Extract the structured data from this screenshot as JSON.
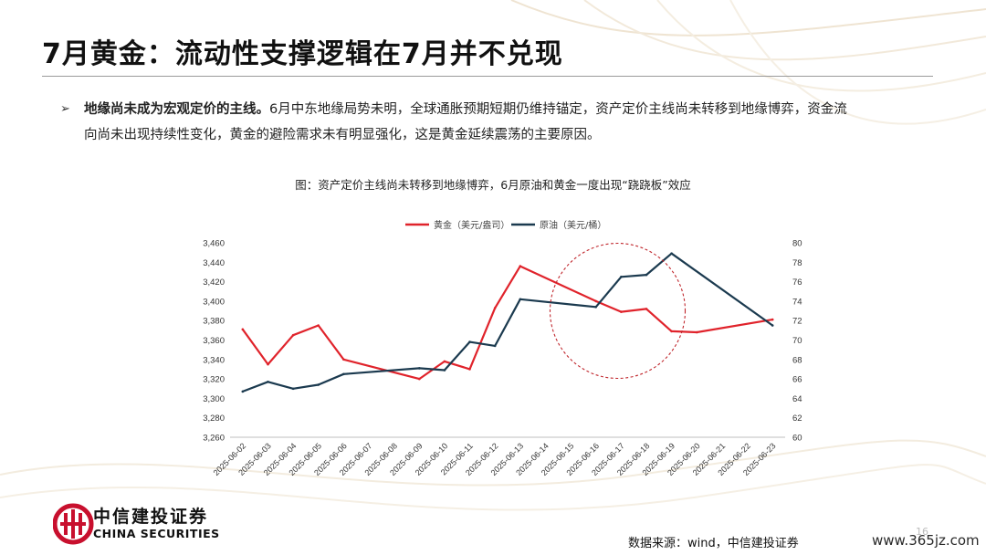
{
  "page": {
    "title": "7月黄金：流动性支撑逻辑在7月并不兑现",
    "bullet_lead": "地缘尚未成为宏观定价的主线。",
    "bullet_body_line1": "6月中东地缘局势未明，全球通胀预期短期仍维持锚定，资产定价主线尚未转移到地缘博弈，资金流",
    "bullet_body_line2": "向尚未出现持续性变化，黄金的避险需求未有明显强化，这是黄金延续震荡的主要原因。",
    "chart_caption": "图：资产定价主线尚未转移到地缘博弈，6月原油和黄金一度出现“跷跷板”效应",
    "logo_cn": "中信建投证券",
    "logo_en": "CHINA SECURITIES",
    "source": "数据来源：wind，中信建投证券",
    "watermark": "www.365jz.com",
    "page_number": "16"
  },
  "colors": {
    "gold_series": "#e0232b",
    "oil_series": "#1b3a4f",
    "circle": "#c0272d",
    "logo_red": "#c8102e"
  },
  "chart_data": {
    "type": "line",
    "categories": [
      "2025-06-02",
      "2025-06-03",
      "2025-06-04",
      "2025-06-05",
      "2025-06-06",
      "2025-06-07",
      "2025-06-08",
      "2025-06-09",
      "2025-06-10",
      "2025-06-11",
      "2025-06-12",
      "2025-06-13",
      "2025-06-14",
      "2025-06-15",
      "2025-06-16",
      "2025-06-17",
      "2025-06-18",
      "2025-06-19",
      "2025-06-20",
      "2025-06-21",
      "2025-06-22",
      "2025-06-23"
    ],
    "series": [
      {
        "name": "黄金（美元/盎司）",
        "axis": "left",
        "values": [
          3371,
          3335,
          3365,
          3375,
          3340,
          null,
          null,
          3320,
          3338,
          3330,
          3393,
          3436,
          null,
          null,
          3400,
          3389,
          3392,
          3369,
          3368,
          null,
          null,
          3381
        ]
      },
      {
        "name": "原油（美元/桶）",
        "axis": "right",
        "values": [
          64.7,
          65.7,
          65.0,
          65.4,
          66.5,
          null,
          null,
          67.1,
          66.9,
          69.8,
          69.4,
          74.2,
          null,
          null,
          73.4,
          76.5,
          76.7,
          78.9,
          null,
          null,
          null,
          71.5
        ]
      }
    ],
    "y_left": {
      "min": 3260,
      "max": 3460,
      "step": 20
    },
    "y_right": {
      "min": 60,
      "max": 80,
      "step": 2
    },
    "legend_position": "top-center",
    "grid": false,
    "annotation": "dashed circle around 2025-06-14 to 2025-06-19"
  }
}
